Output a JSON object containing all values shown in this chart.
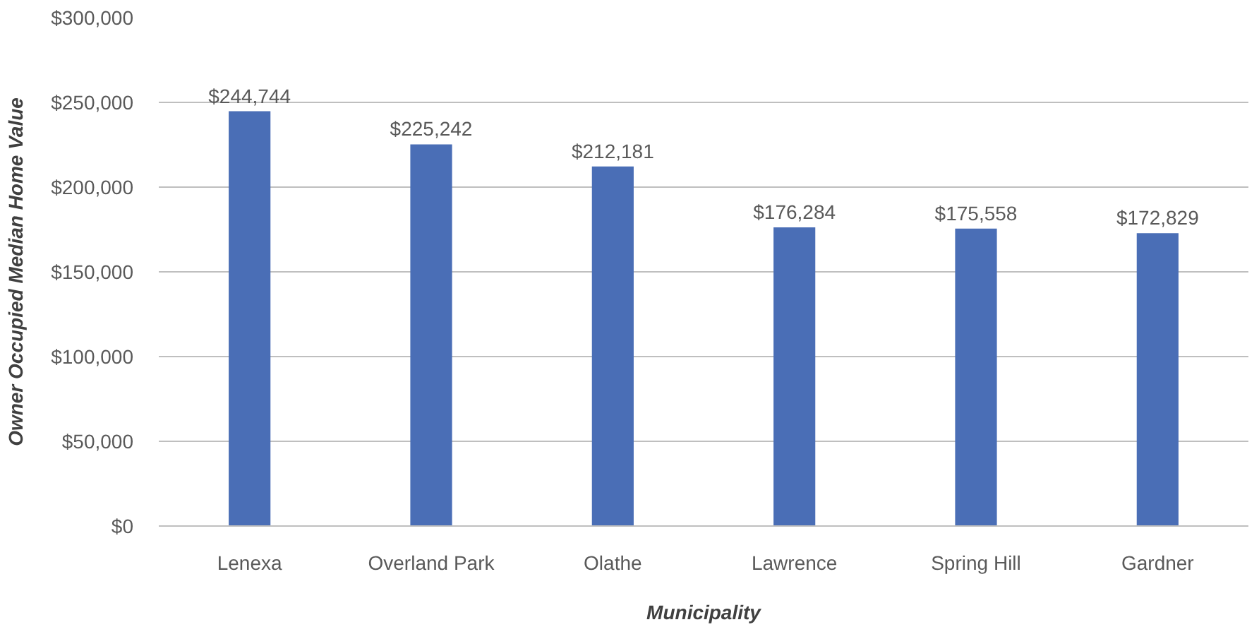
{
  "chart_data": {
    "type": "bar",
    "xlabel": "Municipality",
    "ylabel": "Owner Occupied Median Home Value",
    "categories": [
      "Lenexa",
      "Overland Park",
      "Olathe",
      "Lawrence",
      "Spring Hill",
      "Gardner"
    ],
    "values": [
      244744,
      225242,
      212181,
      176284,
      175558,
      172829
    ],
    "value_labels": [
      "$244,744",
      "$225,242",
      "$212,181",
      "$176,284",
      "$175,558",
      "$172,829"
    ],
    "color": "#4a6eb6",
    "ylim": [
      0,
      300000
    ],
    "yticks": [
      {
        "value": 0,
        "label": "$0"
      },
      {
        "value": 50000,
        "label": "$50,000"
      },
      {
        "value": 100000,
        "label": "$100,000"
      },
      {
        "value": 150000,
        "label": "$150,000"
      },
      {
        "value": 200000,
        "label": "$200,000"
      },
      {
        "value": 250000,
        "label": "$250,000"
      },
      {
        "value": 300000,
        "label": "$300,000"
      }
    ],
    "grid": "y"
  }
}
